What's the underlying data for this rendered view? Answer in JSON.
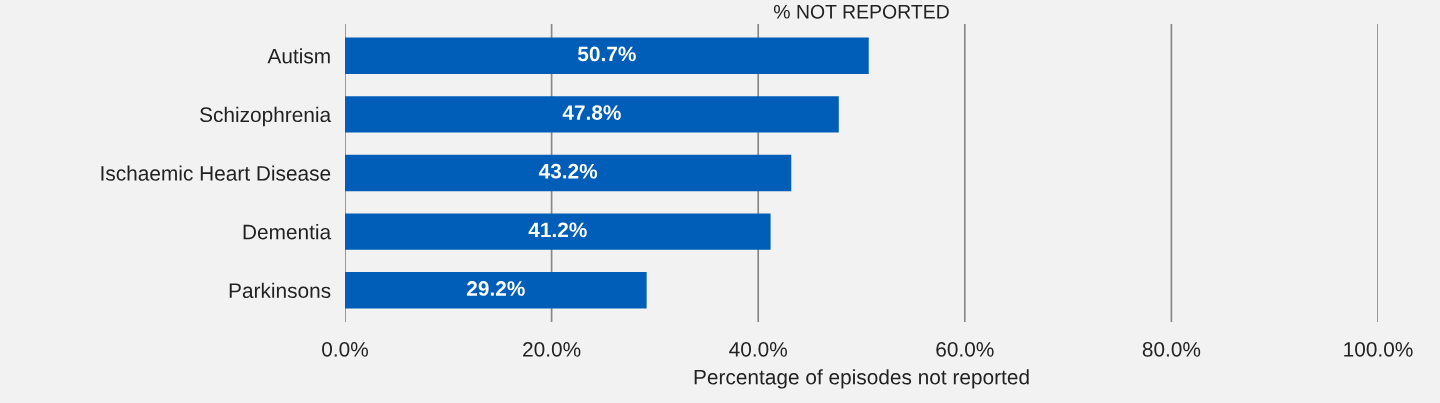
{
  "chart_data": {
    "type": "bar",
    "orientation": "horizontal",
    "title": "% NOT REPORTED",
    "xlabel": "Percentage of episodes not reported",
    "categories": [
      "Autism",
      "Schizophrenia",
      "Ischaemic Heart Disease",
      "Dementia",
      "Parkinsons"
    ],
    "values": [
      50.7,
      47.8,
      43.2,
      41.2,
      29.2
    ],
    "value_labels": [
      "50.7%",
      "47.8%",
      "43.2%",
      "41.2%",
      "29.2%"
    ],
    "color": "#005eb8",
    "xlim": [
      0,
      100
    ],
    "xticks": [
      {
        "value": 0,
        "label": "0.0%"
      },
      {
        "value": 20,
        "label": "20.0%"
      },
      {
        "value": 40,
        "label": "40.0%"
      },
      {
        "value": 60,
        "label": "60.0%"
      },
      {
        "value": 80,
        "label": "80.0%"
      },
      {
        "value": 100,
        "label": "100.0%"
      }
    ],
    "grid": "x"
  }
}
